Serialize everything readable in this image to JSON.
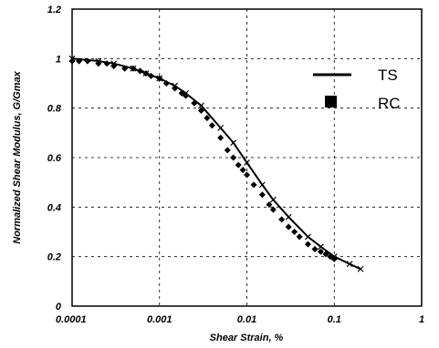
{
  "chart_data": {
    "type": "scatter",
    "title": "",
    "xlabel": "Shear Strain, %",
    "ylabel": "Normalized Shear Modulus, G/Gmax",
    "x_scale": "log",
    "xlim": [
      0.0001,
      1
    ],
    "ylim": [
      0,
      1.2
    ],
    "grid": true,
    "x_ticks": [
      "0.0001",
      "0.001",
      "0.01",
      "0.1",
      "1"
    ],
    "y_ticks": [
      "0",
      "0.2",
      "0.4",
      "0.6",
      "0.8",
      "1",
      "1.2"
    ],
    "legend": {
      "placement": "top-right",
      "entries": [
        "TS",
        "RC"
      ]
    },
    "series": [
      {
        "name": "TS",
        "marker": "line",
        "x": [
          0.0001,
          0.0002,
          0.0003,
          0.0005,
          0.0007,
          0.001,
          0.0015,
          0.002,
          0.003,
          0.005,
          0.007,
          0.01,
          0.015,
          0.02,
          0.03,
          0.05,
          0.07,
          0.1,
          0.15,
          0.2
        ],
        "y": [
          1.0,
          0.99,
          0.98,
          0.96,
          0.94,
          0.92,
          0.89,
          0.86,
          0.81,
          0.72,
          0.66,
          0.58,
          0.49,
          0.43,
          0.36,
          0.28,
          0.24,
          0.2,
          0.17,
          0.15
        ]
      },
      {
        "name": "RC",
        "marker": "square",
        "x": [
          0.0001,
          0.00012,
          0.00015,
          0.0002,
          0.00025,
          0.0003,
          0.0004,
          0.0005,
          0.0006,
          0.0007,
          0.0008,
          0.001,
          0.0012,
          0.0015,
          0.0018,
          0.002,
          0.0025,
          0.003,
          0.0035,
          0.004,
          0.005,
          0.006,
          0.007,
          0.008,
          0.009,
          0.01,
          0.012,
          0.015,
          0.018,
          0.02,
          0.025,
          0.03,
          0.035,
          0.04,
          0.05,
          0.06,
          0.07,
          0.08,
          0.09,
          0.1
        ],
        "y": [
          0.99,
          0.99,
          0.99,
          0.98,
          0.98,
          0.97,
          0.96,
          0.96,
          0.95,
          0.94,
          0.93,
          0.92,
          0.9,
          0.88,
          0.86,
          0.85,
          0.82,
          0.79,
          0.76,
          0.73,
          0.68,
          0.63,
          0.6,
          0.57,
          0.55,
          0.53,
          0.49,
          0.45,
          0.41,
          0.39,
          0.35,
          0.32,
          0.3,
          0.28,
          0.25,
          0.23,
          0.22,
          0.21,
          0.2,
          0.19
        ]
      }
    ]
  }
}
